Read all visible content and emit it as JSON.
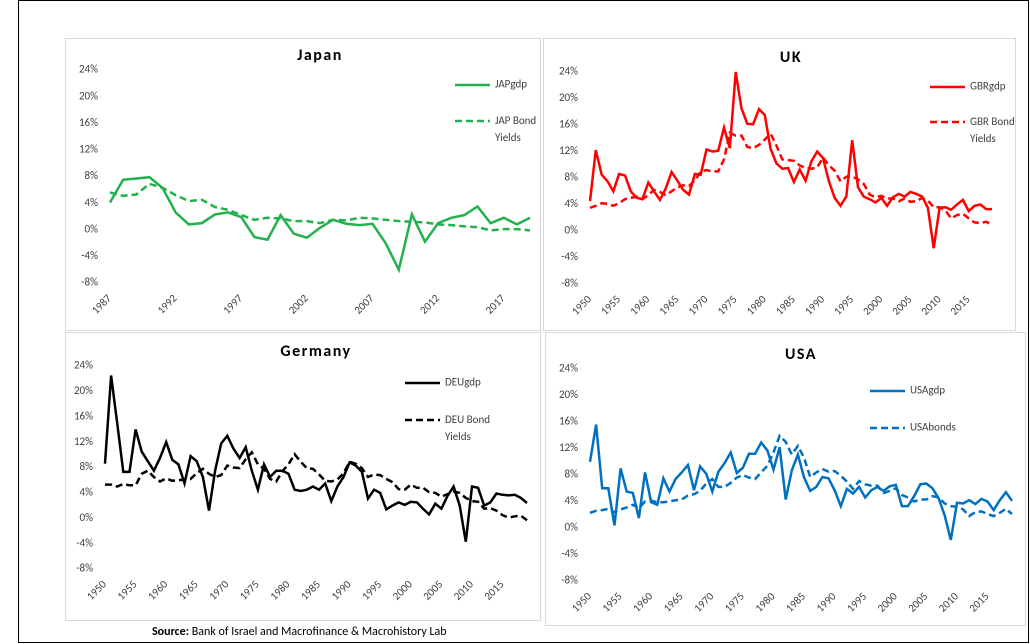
{
  "chart_data": [
    {
      "type": "line",
      "title": "Japan",
      "x": [
        1987,
        1988,
        1989,
        1990,
        1991,
        1992,
        1993,
        1994,
        1995,
        1996,
        1997,
        1998,
        1999,
        2000,
        2001,
        2002,
        2003,
        2004,
        2005,
        2006,
        2007,
        2008,
        2009,
        2010,
        2011,
        2012,
        2013,
        2014,
        2015,
        2016,
        2017,
        2018,
        2019
      ],
      "xlim": [
        1987,
        2019
      ],
      "xticks": [
        1987,
        1992,
        1997,
        2002,
        2007,
        2012,
        2017
      ],
      "ylim": [
        -8,
        24
      ],
      "yticks": [
        {
          "value": -8,
          "label": "-8%"
        },
        {
          "value": -4,
          "label": "-4%"
        },
        {
          "value": 0,
          "label": "0%"
        },
        {
          "value": 4,
          "label": "4%"
        },
        {
          "value": 8,
          "label": "8%"
        },
        {
          "value": 12,
          "label": "12%"
        },
        {
          "value": 16,
          "label": "16%"
        },
        {
          "value": 20,
          "label": "20%"
        },
        {
          "value": 24,
          "label": "24%"
        }
      ],
      "series": [
        {
          "name": "JAPgdp",
          "color": "#22b14c",
          "style": "solid",
          "values": [
            4.1,
            7.5,
            7.7,
            7.9,
            6.3,
            2.6,
            0.8,
            1.0,
            2.3,
            2.6,
            1.9,
            -1.1,
            -1.5,
            2.2,
            -0.6,
            -1.2,
            0.3,
            1.5,
            0.9,
            0.7,
            0.9,
            -2.0,
            -6.0,
            2.3,
            -1.8,
            1.0,
            1.8,
            2.2,
            3.5,
            1.0,
            1.8,
            0.8,
            1.8
          ]
        },
        {
          "name": "JAP Bond Yields",
          "color": "#22b14c",
          "style": "dashed",
          "values": [
            5.6,
            5.1,
            5.3,
            6.9,
            6.3,
            5.2,
            4.3,
            4.5,
            3.4,
            3.0,
            2.2,
            1.5,
            1.8,
            1.7,
            1.3,
            1.3,
            1.0,
            1.5,
            1.4,
            1.8,
            1.7,
            1.5,
            1.3,
            1.2,
            1.1,
            0.8,
            0.7,
            0.5,
            0.4,
            -0.1,
            0.1,
            0.1,
            -0.1
          ]
        }
      ]
    },
    {
      "type": "line",
      "title": "UK",
      "x": [
        1950,
        1951,
        1952,
        1953,
        1954,
        1955,
        1956,
        1957,
        1958,
        1959,
        1960,
        1961,
        1962,
        1963,
        1964,
        1965,
        1966,
        1967,
        1968,
        1969,
        1970,
        1971,
        1972,
        1973,
        1974,
        1975,
        1976,
        1977,
        1978,
        1979,
        1980,
        1981,
        1982,
        1983,
        1984,
        1985,
        1986,
        1987,
        1988,
        1989,
        1990,
        1991,
        1992,
        1993,
        1994,
        1995,
        1996,
        1997,
        1998,
        1999,
        2000,
        2001,
        2002,
        2003,
        2004,
        2005,
        2006,
        2007,
        2008,
        2009,
        2010,
        2011,
        2012,
        2013,
        2014,
        2015,
        2016,
        2017,
        2018,
        2019
      ],
      "xlim": [
        1950,
        2019
      ],
      "xticks": [
        1950,
        1955,
        1960,
        1965,
        1970,
        1975,
        1980,
        1985,
        1990,
        1995,
        2000,
        2005,
        2010,
        2015
      ],
      "ylim": [
        -8,
        24
      ],
      "yticks": [
        {
          "value": -8,
          "label": "-8%"
        },
        {
          "value": -4,
          "label": "-4%"
        },
        {
          "value": 0,
          "label": "0%"
        },
        {
          "value": 4,
          "label": "4%"
        },
        {
          "value": 8,
          "label": "8%"
        },
        {
          "value": 12,
          "label": "12%"
        },
        {
          "value": 16,
          "label": "16%"
        },
        {
          "value": 20,
          "label": "20%"
        },
        {
          "value": 24,
          "label": "24%"
        }
      ],
      "series": [
        {
          "name": "GBRgdp",
          "color": "#ff0000",
          "style": "solid",
          "values": [
            4.5,
            12.2,
            8.5,
            7.5,
            6,
            8.6,
            8.4,
            6,
            5,
            4.8,
            7.3,
            6,
            4.7,
            6.4,
            8.9,
            7.6,
            6.2,
            5.5,
            8.6,
            8.5,
            12.3,
            12,
            12.1,
            15.6,
            12.5,
            24,
            18.5,
            16.2,
            16.1,
            18.4,
            17.5,
            12.4,
            10.2,
            9.4,
            9.5,
            7.4,
            9.3,
            7.6,
            10.5,
            12,
            11,
            7.5,
            5,
            3.8,
            5.2,
            13.7,
            6.6,
            5.2,
            4.8,
            4.3,
            5,
            3.8,
            5.1,
            5.6,
            5.2,
            5.9,
            5.6,
            5.2,
            3.5,
            -2.6,
            3.5,
            3.6,
            3.2,
            4.0,
            4.7,
            3.0,
            3.8,
            4.0,
            3.3,
            3.3
          ]
        },
        {
          "name": "GBR Bond Yields",
          "color": "#ff0000",
          "style": "dashed",
          "values": [
            3.5,
            3.8,
            4.2,
            4.1,
            3.8,
            4.2,
            4.8,
            5.0,
            5.2,
            4.8,
            5.4,
            6.2,
            5.9,
            5.4,
            6.0,
            6.6,
            6.9,
            6.8,
            7.6,
            9.0,
            9.2,
            9.0,
            9.0,
            10.8,
            14.8,
            14.4,
            14.4,
            12.7,
            12.5,
            13.0,
            13.8,
            14.7,
            12.9,
            10.8,
            10.7,
            10.6,
            9.9,
            9.5,
            9.4,
            9.6,
            11.1,
            9.9,
            9.1,
            7.5,
            8.2,
            8.2,
            7.8,
            7.1,
            5.5,
            5.1,
            5.3,
            4.9,
            4.9,
            4.5,
            4.9,
            4.4,
            4.5,
            5.0,
            4.6,
            3.6,
            3.6,
            3.1,
            1.9,
            2.4,
            2.6,
            1.9,
            1.3,
            1.2,
            1.4,
            0.9
          ]
        }
      ]
    },
    {
      "type": "line",
      "title": "Germany",
      "x": [
        1950,
        1951,
        1952,
        1953,
        1954,
        1955,
        1956,
        1957,
        1958,
        1959,
        1960,
        1961,
        1962,
        1963,
        1964,
        1965,
        1966,
        1967,
        1968,
        1969,
        1970,
        1971,
        1972,
        1973,
        1974,
        1975,
        1976,
        1977,
        1978,
        1979,
        1980,
        1981,
        1982,
        1983,
        1984,
        1985,
        1986,
        1987,
        1988,
        1989,
        1990,
        1991,
        1992,
        1993,
        1994,
        1995,
        1996,
        1997,
        1998,
        1999,
        2000,
        2001,
        2002,
        2003,
        2004,
        2005,
        2006,
        2007,
        2008,
        2009,
        2010,
        2011,
        2012,
        2013,
        2014,
        2015,
        2016,
        2017,
        2018,
        2019
      ],
      "xlim": [
        1950,
        2019
      ],
      "xticks": [
        1950,
        1955,
        1960,
        1965,
        1970,
        1975,
        1980,
        1985,
        1990,
        1995,
        2000,
        2005,
        2010,
        2015
      ],
      "ylim": [
        -8,
        24
      ],
      "yticks": [
        {
          "value": -8,
          "label": "-8%"
        },
        {
          "value": -4,
          "label": "-4%"
        },
        {
          "value": 0,
          "label": "0%"
        },
        {
          "value": 4,
          "label": "4%"
        },
        {
          "value": 8,
          "label": "8%"
        },
        {
          "value": 12,
          "label": "12%"
        },
        {
          "value": 16,
          "label": "16%"
        },
        {
          "value": 20,
          "label": "20%"
        },
        {
          "value": 24,
          "label": "24%"
        }
      ],
      "series": [
        {
          "name": "DEUgdp",
          "color": "#000000",
          "style": "solid",
          "values": [
            8.6,
            22.5,
            15,
            7.3,
            7.3,
            14,
            10.5,
            9,
            7.5,
            9.5,
            12,
            9.2,
            8.5,
            5.5,
            9.8,
            9,
            6.5,
            1.2,
            7.5,
            11.8,
            13,
            11,
            9.5,
            11.2,
            7.5,
            4.5,
            8.5,
            6.5,
            7.5,
            7.5,
            7,
            4.5,
            4.3,
            4.5,
            5,
            4.5,
            5.5,
            2.7,
            5,
            6.5,
            8.8,
            8.3,
            7.3,
            3.1,
            4.5,
            4,
            1.4,
            2,
            2.5,
            2.1,
            2.6,
            2.5,
            1.5,
            0.6,
            2.3,
            1.5,
            3.5,
            5,
            2,
            -3.7,
            5,
            4.8,
            2,
            2.5,
            3.9,
            3.7,
            3.6,
            3.7,
            3.2,
            2.4
          ]
        },
        {
          "name": "DEU Bond Yields",
          "color": "#000000",
          "style": "dashed",
          "values": [
            5.3,
            5.3,
            5.0,
            5.4,
            5.2,
            5.2,
            7.0,
            7.5,
            6.5,
            5.8,
            6.3,
            5.9,
            6.0,
            6.1,
            6.2,
            7.1,
            7.8,
            7.0,
            6.5,
            6.8,
            8.3,
            8.0,
            7.9,
            9.3,
            10.4,
            8.5,
            7.8,
            6.2,
            5.8,
            7.4,
            8.5,
            10.1,
            8.9,
            7.9,
            7.8,
            6.9,
            5.9,
            5.8,
            6.1,
            7.1,
            8.9,
            8.6,
            7.9,
            6.5,
            6.9,
            6.8,
            6.2,
            5.7,
            4.6,
            4.5,
            5.3,
            4.8,
            4.8,
            4.1,
            4.0,
            3.4,
            3.8,
            4.2,
            4.0,
            3.2,
            2.7,
            2.6,
            1.5,
            1.6,
            1.2,
            0.5,
            0.1,
            0.3,
            0.4,
            -0.3
          ]
        }
      ]
    },
    {
      "type": "line",
      "title": "USA",
      "x": [
        1950,
        1951,
        1952,
        1953,
        1954,
        1955,
        1956,
        1957,
        1958,
        1959,
        1960,
        1961,
        1962,
        1963,
        1964,
        1965,
        1966,
        1967,
        1968,
        1969,
        1970,
        1971,
        1972,
        1973,
        1974,
        1975,
        1976,
        1977,
        1978,
        1979,
        1980,
        1981,
        1982,
        1983,
        1984,
        1985,
        1986,
        1987,
        1988,
        1989,
        1990,
        1991,
        1992,
        1993,
        1994,
        1995,
        1996,
        1997,
        1998,
        1999,
        2000,
        2001,
        2002,
        2003,
        2004,
        2005,
        2006,
        2007,
        2008,
        2009,
        2010,
        2011,
        2012,
        2013,
        2014,
        2015,
        2016,
        2017,
        2018,
        2019
      ],
      "xlim": [
        1950,
        2019
      ],
      "xticks": [
        1950,
        1955,
        1960,
        1965,
        1970,
        1975,
        1980,
        1985,
        1990,
        1995,
        2000,
        2005,
        2010,
        2015
      ],
      "ylim": [
        -8,
        24
      ],
      "yticks": [
        {
          "value": -8,
          "label": "-8%"
        },
        {
          "value": -4,
          "label": "-4%"
        },
        {
          "value": 0,
          "label": "0%"
        },
        {
          "value": 4,
          "label": "4%"
        },
        {
          "value": 8,
          "label": "8%"
        },
        {
          "value": 12,
          "label": "12%"
        },
        {
          "value": 16,
          "label": "16%"
        },
        {
          "value": 20,
          "label": "20%"
        },
        {
          "value": 24,
          "label": "24%"
        }
      ],
      "series": [
        {
          "name": "USAgdp",
          "color": "#0070c0",
          "style": "solid",
          "values": [
            10,
            15.6,
            6,
            6,
            0.4,
            9,
            5.5,
            5.3,
            1.5,
            8.4,
            3.9,
            3.5,
            7.5,
            5.5,
            7.4,
            8.4,
            9.5,
            5.7,
            9.3,
            8.2,
            5.5,
            8.5,
            9.8,
            11.4,
            8.3,
            9.1,
            11.2,
            11.2,
            12.9,
            11.7,
            8.8,
            12.2,
            4.3,
            8.7,
            11.1,
            7.6,
            5.6,
            6.2,
            7.7,
            7.5,
            5.7,
            3.3,
            5.9,
            5.2,
            6.2,
            4.6,
            5.7,
            6.2,
            5.6,
            6.3,
            6.5,
            3.3,
            3.3,
            4.8,
            6.6,
            6.7,
            6.0,
            4.5,
            1.9,
            -1.8,
            3.8,
            3.7,
            4.2,
            3.6,
            4.4,
            4.0,
            2.7,
            4.2,
            5.4,
            4.1
          ]
        },
        {
          "name": "USAbonds",
          "color": "#0070c0",
          "style": "dashed",
          "values": [
            2.3,
            2.6,
            2.7,
            2.9,
            2.4,
            2.8,
            3.1,
            3.5,
            3.0,
            4.0,
            4.1,
            3.9,
            3.9,
            4.0,
            4.2,
            4.3,
            4.9,
            5.1,
            5.6,
            6.7,
            7.4,
            6.2,
            6.2,
            6.8,
            7.6,
            8.0,
            7.6,
            7.4,
            8.4,
            9.4,
            11.4,
            13.9,
            13.0,
            11.1,
            12.4,
            10.6,
            7.7,
            8.4,
            8.9,
            8.5,
            8.6,
            7.9,
            7.0,
            5.9,
            7.1,
            6.6,
            6.4,
            6.4,
            5.3,
            5.6,
            6.0,
            5.0,
            4.6,
            4.0,
            4.3,
            4.3,
            4.8,
            4.6,
            3.7,
            3.3,
            3.2,
            2.8,
            1.8,
            2.4,
            2.5,
            2.1,
            1.8,
            2.3,
            2.9,
            2.1
          ]
        }
      ]
    }
  ],
  "source": {
    "label": "Source:",
    "text": "Bank of Israel and Macrofinance & Macrohistory Lab"
  }
}
